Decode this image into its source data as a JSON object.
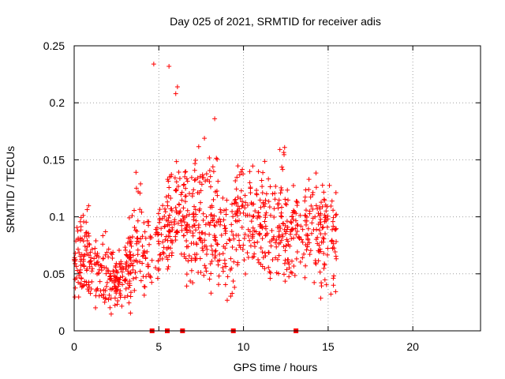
{
  "chart_data": {
    "type": "scatter",
    "title": "Day 025 of 2021, SRMTID for receiver adis",
    "xlabel": "GPS time / hours",
    "ylabel": "SRMTID / TECUs",
    "xlim": [
      0,
      24
    ],
    "ylim": [
      0,
      0.25
    ],
    "xticks": [
      0,
      5,
      10,
      15,
      20
    ],
    "yticks": [
      0,
      0.05,
      0.1,
      0.15,
      0.2,
      0.25
    ],
    "xtick_labels": [
      "0",
      "5",
      "10",
      "15",
      "20"
    ],
    "ytick_labels": [
      "0",
      "0.05",
      "0.1",
      "0.15",
      "0.2",
      "0.25"
    ],
    "grid": true,
    "series": [
      {
        "name": "SRMTID",
        "color": "#ff0000",
        "marker": "plus",
        "description": "dense cloud of '+' points spanning roughly 0 to 15.5 hours"
      }
    ],
    "highlight_points": [
      {
        "x": 4.7,
        "y": 0.234
      },
      {
        "x": 5.6,
        "y": 0.232
      },
      {
        "x": 6.1,
        "y": 0.214
      },
      {
        "x": 8.3,
        "y": 0.186
      },
      {
        "x": 6.0,
        "y": 0.208
      }
    ],
    "markers_at_zero": [
      4.6,
      5.5,
      6.4,
      9.4,
      13.1
    ],
    "marker_color": "#ff0000",
    "segments": [
      {
        "x0": 0.0,
        "x1": 0.8,
        "lo": 0.02,
        "hi": 0.1,
        "n": 60
      },
      {
        "x0": 0.3,
        "x1": 1.0,
        "lo": 0.06,
        "hi": 0.12,
        "n": 15
      },
      {
        "x0": 0.8,
        "x1": 2.0,
        "lo": 0.015,
        "hi": 0.09,
        "n": 70
      },
      {
        "x0": 2.0,
        "x1": 3.4,
        "lo": 0.012,
        "hi": 0.08,
        "n": 110
      },
      {
        "x0": 3.2,
        "x1": 4.6,
        "lo": 0.03,
        "hi": 0.11,
        "n": 80
      },
      {
        "x0": 3.6,
        "x1": 4.0,
        "lo": 0.1,
        "hi": 0.15,
        "n": 6
      },
      {
        "x0": 4.8,
        "x1": 5.8,
        "lo": 0.04,
        "hi": 0.12,
        "n": 60
      },
      {
        "x0": 5.5,
        "x1": 6.6,
        "lo": 0.06,
        "hi": 0.16,
        "n": 75
      },
      {
        "x0": 6.5,
        "x1": 8.0,
        "lo": 0.03,
        "hi": 0.15,
        "n": 100
      },
      {
        "x0": 7.0,
        "x1": 8.5,
        "lo": 0.1,
        "hi": 0.175,
        "n": 25
      },
      {
        "x0": 8.0,
        "x1": 9.5,
        "lo": 0.02,
        "hi": 0.14,
        "n": 90
      },
      {
        "x0": 9.5,
        "x1": 11.5,
        "lo": 0.04,
        "hi": 0.15,
        "n": 140
      },
      {
        "x0": 11.5,
        "x1": 13.5,
        "lo": 0.04,
        "hi": 0.14,
        "n": 130
      },
      {
        "x0": 12.0,
        "x1": 12.6,
        "lo": 0.13,
        "hi": 0.175,
        "n": 6
      },
      {
        "x0": 13.5,
        "x1": 15.5,
        "lo": 0.03,
        "hi": 0.14,
        "n": 130
      },
      {
        "x0": 14.5,
        "x1": 15.5,
        "lo": 0.02,
        "hi": 0.05,
        "n": 6
      }
    ]
  }
}
